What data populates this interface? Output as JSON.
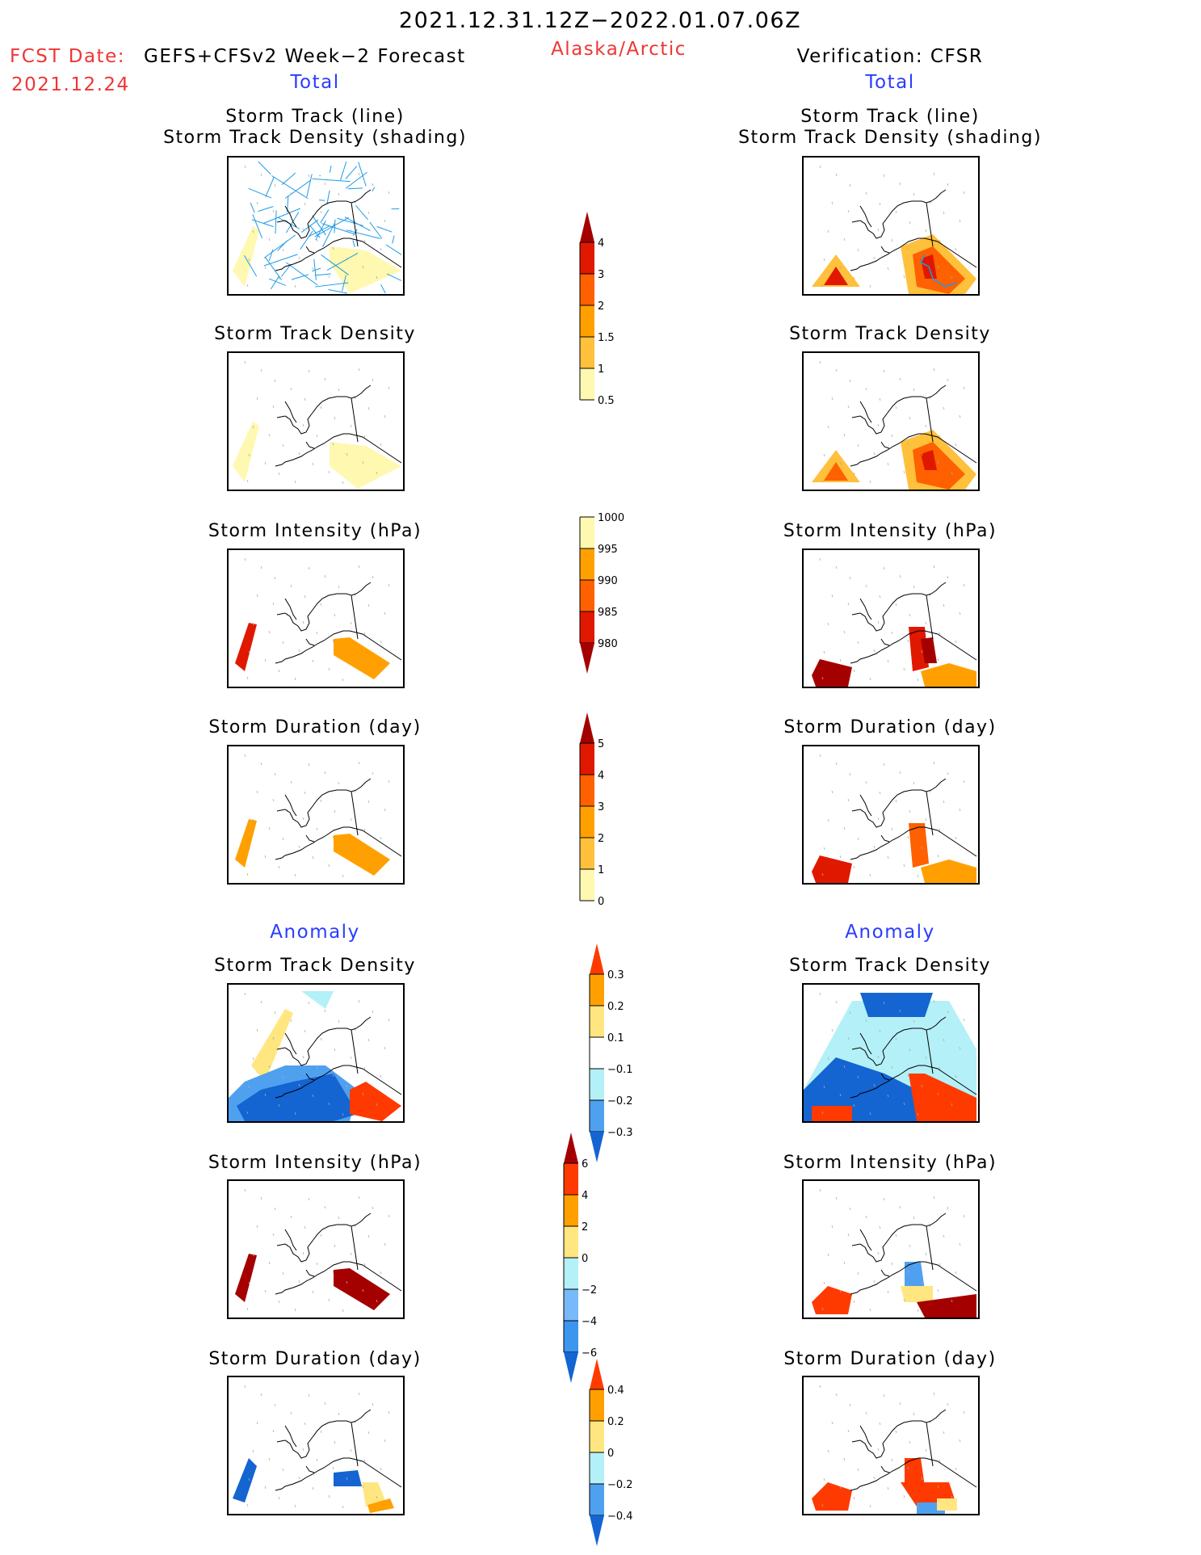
{
  "header": {
    "period": "2021.12.31.12Z−2022.01.07.06Z",
    "region": "Alaska/Arctic",
    "fcst_date_label": "FCST Date:",
    "fcst_date": "2021.12.24",
    "forecast_title": "GEFS+CFSv2 Week−2 Forecast",
    "verification_title": "Verification: CFSR",
    "colors": {
      "red": "#ef3535",
      "blue": "#2a3cff"
    }
  },
  "sections": {
    "total_left": "Total",
    "total_right": "Total",
    "anomaly_left": "Anomaly",
    "anomaly_right": "Anomaly"
  },
  "panels": {
    "left": [
      {
        "title1": "Storm Track (line)",
        "title2": "Storm Track Density (shading)"
      },
      {
        "title1": "Storm Track Density"
      },
      {
        "title1": "Storm Intensity (hPa)"
      },
      {
        "title1": "Storm Duration (day)"
      },
      {
        "title1": "Storm Track Density"
      },
      {
        "title1": "Storm Intensity (hPa)"
      },
      {
        "title1": "Storm Duration (day)"
      }
    ],
    "right": [
      {
        "title1": "Storm Track (line)",
        "title2": "Storm Track Density (shading)"
      },
      {
        "title1": "Storm Track Density"
      },
      {
        "title1": "Storm Intensity (hPa)"
      },
      {
        "title1": "Storm Duration (day)"
      },
      {
        "title1": "Storm Track Density"
      },
      {
        "title1": "Storm Intensity (hPa)"
      },
      {
        "title1": "Storm Duration (day)"
      }
    ]
  },
  "chart_data": {
    "type": "heatmap",
    "title": "2021.12.31.12Z−2022.01.07.06Z Alaska/Arctic",
    "description": "Map panels: GEFS+CFSv2 Week-2 forecast (left) vs CFSR verification (right); shaded fields over Alaska/Arctic polar projection",
    "colorbars": [
      {
        "name": "track-density-total",
        "levels": [
          "0.5",
          "1",
          "1.5",
          "2",
          "3",
          "4"
        ],
        "colors": [
          "#fff8b0",
          "#ffc03c",
          "#ffa000",
          "#ff6000",
          "#e01800",
          "#a50000"
        ],
        "extend": "max"
      },
      {
        "name": "intensity-total",
        "levels": [
          "1000",
          "995",
          "990",
          "985",
          "980"
        ],
        "colors": [
          "#fff8b0",
          "#ffa000",
          "#ff6000",
          "#e01800",
          "#a50000"
        ],
        "extend": "min"
      },
      {
        "name": "duration-total",
        "levels": [
          "0",
          "1",
          "2",
          "3",
          "4",
          "5"
        ],
        "colors": [
          "#fff8b0",
          "#ffc03c",
          "#ffa000",
          "#ff6000",
          "#e01800",
          "#a50000"
        ],
        "extend": "max"
      },
      {
        "name": "track-density-anomaly",
        "levels": [
          "0.3",
          "0.2",
          "0.1",
          "−0.1",
          "−0.2",
          "−0.3"
        ],
        "colors": [
          "#ff3a00",
          "#ffa000",
          "#ffe680",
          "#ffffff",
          "#b4f0f8",
          "#50a0f0",
          "#1464d2"
        ],
        "extend": "both"
      },
      {
        "name": "intensity-anomaly",
        "levels": [
          "6",
          "4",
          "2",
          "0",
          "−2",
          "−4",
          "−6"
        ],
        "colors": [
          "#a50000",
          "#ff3a00",
          "#ffa000",
          "#ffe680",
          "#b4f0f8",
          "#78b9fa",
          "#3c96f0",
          "#1464d2"
        ],
        "extend": "both"
      },
      {
        "name": "duration-anomaly",
        "levels": [
          "0.4",
          "0.2",
          "0",
          "−0.2",
          "−0.4"
        ],
        "colors": [
          "#ff3a00",
          "#ffa000",
          "#ffe680",
          "#b4f0f8",
          "#50a0f0",
          "#1464d2"
        ],
        "extend": "both"
      }
    ]
  }
}
